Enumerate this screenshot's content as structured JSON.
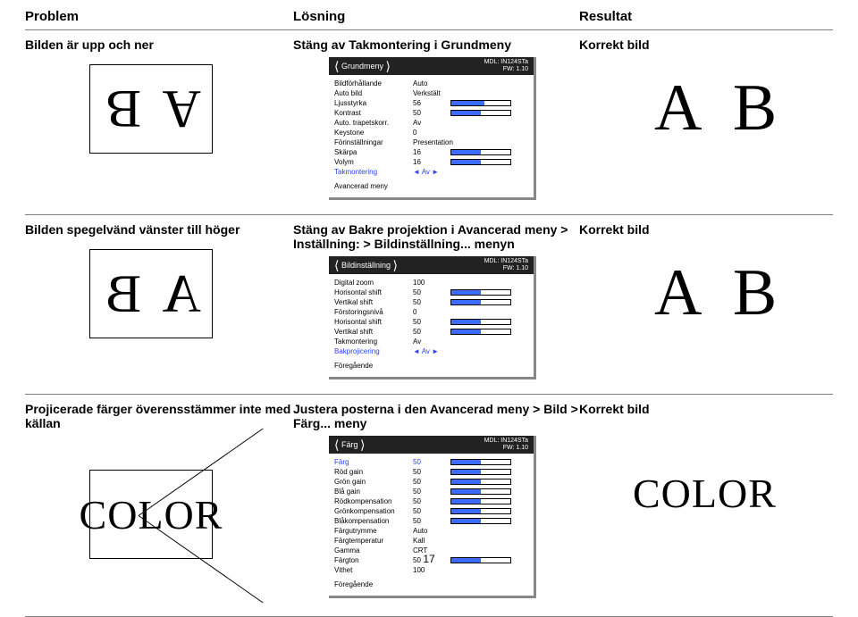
{
  "headers": {
    "problem": "Problem",
    "losning": "Lösning",
    "resultat": "Resultat"
  },
  "row1": {
    "problem": "Bilden är upp och ner",
    "losning": "Stäng av Takmontering i Grundmeny",
    "resultat": "Korrekt bild",
    "ab_problem": "A B",
    "ab_result": "A B",
    "menu": {
      "title": "Grundmeny",
      "mdl": "MDL: IN124STa",
      "fw": "FW: 1.10",
      "items": [
        {
          "label": "Bildförhållande",
          "value": "Auto",
          "bar": null
        },
        {
          "label": "Auto bild",
          "value": "Verkstält",
          "bar": null
        },
        {
          "label": "Ljusstyrka",
          "value": "56",
          "bar": 56
        },
        {
          "label": "Kontrast",
          "value": "50",
          "bar": 50
        },
        {
          "label": "Auto. trapetskorr.",
          "value": "Av",
          "bar": null
        },
        {
          "label": "Keystone",
          "value": "0",
          "bar": null
        },
        {
          "label": "Förinställningar",
          "value": "Presentation",
          "bar": null
        },
        {
          "label": "Skärpa",
          "value": "16",
          "bar": 50
        },
        {
          "label": "Volym",
          "value": "16",
          "bar": 50
        },
        {
          "label": "Takmontering",
          "value": "◄ Av ►",
          "bar": null,
          "highlight": true
        }
      ],
      "footer": "Avancerad meny"
    }
  },
  "row2": {
    "problem": "Bilden spegelvänd vänster till höger",
    "losning": "Stäng av Bakre projektion i Avancerad meny > Inställning: > Bildinställning... menyn",
    "resultat": "Korrekt bild",
    "ab_problem": "A B",
    "ab_result": "A B",
    "menu": {
      "title": "Bildinställning",
      "mdl": "MDL: IN124STa",
      "fw": "FW: 1.10",
      "items": [
        {
          "label": "Digital zoom",
          "value": "100",
          "bar": null
        },
        {
          "label": "Horisontal shift",
          "value": "50",
          "bar": 50
        },
        {
          "label": "Vertikal shift",
          "value": "50",
          "bar": 50
        },
        {
          "label": "Förstoringsnivå",
          "value": "0",
          "bar": null
        },
        {
          "label": "Horisontal shift",
          "value": "50",
          "bar": 50
        },
        {
          "label": "Vertikal shift",
          "value": "50",
          "bar": 50
        },
        {
          "label": "Takmontering",
          "value": "Av",
          "bar": null
        },
        {
          "label": "Bakprojicering",
          "value": "◄ Av ►",
          "bar": null,
          "highlight": true
        }
      ],
      "footer": "Föregående"
    }
  },
  "row3": {
    "problem": "Projicerade färger överensstämmer inte med källan",
    "losning": "Justera posterna i den Avancerad meny > Bild > Färg... meny",
    "resultat": "Korrekt bild",
    "color_text": "COLOR",
    "menu": {
      "title": "Färg",
      "mdl": "MDL: IN124STa",
      "fw": "FW: 1.10",
      "items": [
        {
          "label": "Färg",
          "value": "50",
          "bar": 50,
          "highlight": true
        },
        {
          "label": "Röd gain",
          "value": "50",
          "bar": 50
        },
        {
          "label": "Grön gain",
          "value": "50",
          "bar": 50
        },
        {
          "label": "Blå gain",
          "value": "50",
          "bar": 50
        },
        {
          "label": "Rödkompensation",
          "value": "50",
          "bar": 50
        },
        {
          "label": "Grönkompensation",
          "value": "50",
          "bar": 50
        },
        {
          "label": "Blåkompensation",
          "value": "50",
          "bar": 50
        },
        {
          "label": "Färgutrymme",
          "value": "Auto",
          "bar": null
        },
        {
          "label": "Färgtemperatur",
          "value": "Kall",
          "bar": null
        },
        {
          "label": "Gamma",
          "value": "CRT",
          "bar": null
        },
        {
          "label": "Färgton",
          "value": "50",
          "bar": 50
        },
        {
          "label": "Vithet",
          "value": "100",
          "bar": null
        }
      ],
      "footer": "Föregående"
    }
  },
  "page": "17"
}
